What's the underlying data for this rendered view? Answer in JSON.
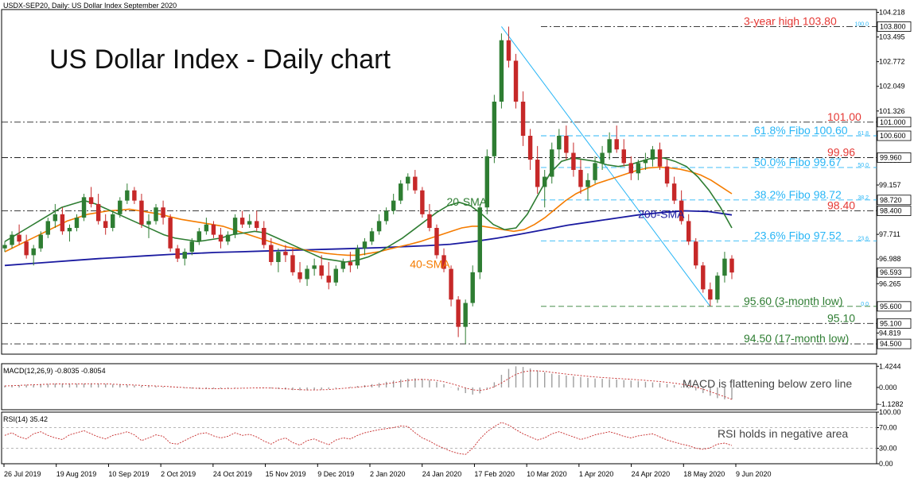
{
  "chart_data": {
    "type": "line",
    "header": "USDX-SEP20, Daily:  US Dollar Index September 2020",
    "title": "US Dollar Index - Daily chart",
    "x_labels": [
      "26 Jul 2019",
      "19 Aug 2019",
      "10 Sep 2019",
      "2 Oct 2019",
      "24 Oct 2019",
      "15 Nov 2019",
      "9 Dec 2019",
      "2 Jan 2020",
      "24 Jan 2020",
      "17 Feb 2020",
      "10 Mar 2020",
      "1 Apr 2020",
      "24 Apr 2020",
      "18 May 2020",
      "9 Jun 2020"
    ],
    "price": {
      "y_range": [
        94.2,
        104.3
      ],
      "y_ticks": [
        "104.218",
        "103.495",
        "102.772",
        "102.049",
        "101.326",
        "100.603",
        "99.880",
        "99.157",
        "98.434",
        "97.711",
        "96.988",
        "96.265",
        "95.542",
        "94.819"
      ],
      "price_tags": [
        {
          "value": 103.8,
          "label": "103.800"
        },
        {
          "value": 101.0,
          "label": "101.000"
        },
        {
          "value": 100.6,
          "label": "100.600"
        },
        {
          "value": 99.96,
          "label": "99.960"
        },
        {
          "value": 98.72,
          "label": "98.720"
        },
        {
          "value": 98.4,
          "label": "98.400"
        },
        {
          "value": 96.593,
          "label": "96.593"
        },
        {
          "value": 95.6,
          "label": "95.600"
        },
        {
          "value": 95.1,
          "label": "95.100"
        },
        {
          "value": 94.5,
          "label": "94.500"
        }
      ],
      "levels": [
        {
          "value": 103.8,
          "text": "3-year high 103.80",
          "color": "#e53935",
          "style": "dashdot",
          "fib": "100.0"
        },
        {
          "value": 101.0,
          "text": "101.00",
          "color": "#e53935",
          "style": "dashdot"
        },
        {
          "value": 100.6,
          "text": "61.8% Fibo 100.60",
          "color": "#29b6f6",
          "style": "dashed",
          "fib": "61.8"
        },
        {
          "value": 99.96,
          "text": "99.96",
          "color": "#e53935",
          "style": "dashdot"
        },
        {
          "value": 99.67,
          "text": "50.0% Fibo 99.67",
          "color": "#29b6f6",
          "style": "dashed",
          "fib": "50.0"
        },
        {
          "value": 98.72,
          "text": "38.2% Fibo 98.72",
          "color": "#29b6f6",
          "style": "dashed",
          "fib": "38.2"
        },
        {
          "value": 98.4,
          "text": "98.40",
          "color": "#e53935",
          "style": "dashdot"
        },
        {
          "value": 97.52,
          "text": "23.6% Fibo 97.52",
          "color": "#29b6f6",
          "style": "dashed",
          "fib": "23.6"
        },
        {
          "value": 95.6,
          "text": "95.60 (3-month low)",
          "color": "#2e7d32",
          "style": "dashed",
          "fib": "0.0"
        },
        {
          "value": 95.1,
          "text": "95.10",
          "color": "#2e7d32",
          "style": "dashdot"
        },
        {
          "value": 94.5,
          "text": "94.50 (17-month low)",
          "color": "#2e7d32",
          "style": "dashdot"
        }
      ],
      "candles": [
        [
          97.3,
          97.5,
          97.2,
          97.4
        ],
        [
          97.4,
          97.8,
          97.3,
          97.7
        ],
        [
          97.7,
          98.0,
          97.4,
          97.5
        ],
        [
          97.5,
          97.7,
          97.0,
          97.1
        ],
        [
          97.1,
          97.4,
          96.8,
          97.3
        ],
        [
          97.3,
          97.8,
          97.2,
          97.7
        ],
        [
          97.7,
          98.2,
          97.6,
          98.1
        ],
        [
          98.1,
          98.6,
          97.9,
          98.3
        ],
        [
          98.3,
          98.5,
          97.7,
          97.8
        ],
        [
          97.8,
          98.0,
          97.5,
          97.9
        ],
        [
          97.9,
          98.3,
          97.8,
          98.2
        ],
        [
          98.2,
          98.9,
          98.1,
          98.8
        ],
        [
          98.8,
          99.1,
          98.5,
          98.6
        ],
        [
          98.6,
          98.9,
          98.0,
          98.1
        ],
        [
          98.1,
          98.3,
          97.7,
          97.9
        ],
        [
          97.9,
          98.4,
          97.8,
          98.3
        ],
        [
          98.3,
          98.8,
          98.2,
          98.7
        ],
        [
          98.7,
          99.2,
          98.6,
          99.0
        ],
        [
          99.0,
          99.1,
          98.6,
          98.7
        ],
        [
          98.7,
          98.9,
          97.9,
          98.0
        ],
        [
          98.0,
          98.3,
          97.6,
          98.1
        ],
        [
          98.1,
          98.6,
          98.0,
          98.5
        ],
        [
          98.5,
          98.7,
          98.0,
          98.2
        ],
        [
          98.2,
          98.3,
          97.2,
          97.3
        ],
        [
          97.3,
          97.4,
          96.9,
          97.0
        ],
        [
          97.0,
          97.3,
          96.8,
          97.2
        ],
        [
          97.2,
          97.6,
          97.1,
          97.5
        ],
        [
          97.5,
          97.9,
          97.4,
          97.8
        ],
        [
          97.8,
          98.2,
          97.7,
          98.0
        ],
        [
          98.0,
          98.1,
          97.6,
          97.7
        ],
        [
          97.7,
          97.9,
          97.3,
          97.5
        ],
        [
          97.5,
          97.8,
          97.4,
          97.7
        ],
        [
          97.7,
          98.3,
          97.6,
          98.2
        ],
        [
          98.2,
          98.4,
          97.9,
          98.0
        ],
        [
          98.0,
          98.3,
          97.9,
          98.1
        ],
        [
          98.1,
          98.4,
          97.8,
          97.9
        ],
        [
          97.9,
          98.1,
          97.3,
          97.4
        ],
        [
          97.4,
          97.6,
          96.8,
          96.9
        ],
        [
          96.9,
          97.3,
          96.6,
          97.2
        ],
        [
          97.2,
          97.4,
          96.9,
          97.1
        ],
        [
          97.1,
          97.3,
          96.5,
          96.6
        ],
        [
          96.6,
          96.9,
          96.3,
          96.4
        ],
        [
          96.4,
          96.8,
          96.2,
          96.7
        ],
        [
          96.7,
          97.0,
          96.5,
          96.8
        ],
        [
          96.8,
          97.1,
          96.4,
          96.5
        ],
        [
          96.5,
          96.9,
          96.1,
          96.3
        ],
        [
          96.3,
          96.8,
          96.2,
          96.7
        ],
        [
          96.7,
          97.0,
          96.6,
          96.9
        ],
        [
          96.9,
          97.2,
          96.6,
          96.8
        ],
        [
          96.8,
          97.4,
          96.7,
          97.3
        ],
        [
          97.3,
          97.6,
          97.1,
          97.5
        ],
        [
          97.5,
          97.9,
          97.4,
          97.8
        ],
        [
          97.8,
          98.3,
          97.7,
          98.1
        ],
        [
          98.1,
          98.5,
          98.0,
          98.4
        ],
        [
          98.4,
          98.9,
          98.3,
          98.7
        ],
        [
          98.7,
          99.3,
          98.6,
          99.2
        ],
        [
          99.2,
          99.5,
          99.0,
          99.4
        ],
        [
          99.4,
          99.6,
          98.9,
          99.0
        ],
        [
          99.0,
          99.1,
          98.2,
          98.3
        ],
        [
          98.3,
          98.6,
          97.8,
          97.9
        ],
        [
          97.9,
          98.0,
          97.0,
          97.1
        ],
        [
          97.1,
          97.3,
          96.6,
          96.7
        ],
        [
          96.7,
          96.8,
          95.6,
          95.8
        ],
        [
          95.8,
          95.9,
          94.7,
          95.0
        ],
        [
          95.0,
          95.8,
          94.5,
          95.7
        ],
        [
          95.7,
          96.8,
          95.6,
          96.6
        ],
        [
          96.6,
          98.6,
          96.4,
          98.5
        ],
        [
          98.5,
          100.2,
          98.3,
          100.0
        ],
        [
          100.0,
          101.8,
          99.8,
          101.6
        ],
        [
          101.6,
          103.6,
          101.4,
          103.4
        ],
        [
          103.4,
          103.8,
          102.6,
          102.8
        ],
        [
          102.8,
          103.0,
          101.4,
          101.6
        ],
        [
          101.6,
          101.9,
          100.3,
          100.6
        ],
        [
          100.6,
          100.8,
          99.6,
          99.9
        ],
        [
          99.9,
          100.3,
          98.9,
          99.1
        ],
        [
          99.1,
          99.6,
          98.5,
          99.4
        ],
        [
          99.4,
          100.4,
          99.2,
          100.2
        ],
        [
          100.2,
          100.8,
          99.9,
          100.6
        ],
        [
          100.6,
          100.9,
          99.9,
          100.1
        ],
        [
          100.1,
          100.4,
          99.4,
          99.6
        ],
        [
          99.6,
          99.9,
          98.9,
          99.1
        ],
        [
          99.1,
          99.5,
          98.7,
          99.3
        ],
        [
          99.3,
          100.0,
          99.2,
          99.8
        ],
        [
          99.8,
          100.3,
          99.6,
          100.1
        ],
        [
          100.1,
          100.7,
          99.9,
          100.5
        ],
        [
          100.5,
          100.9,
          100.1,
          100.2
        ],
        [
          100.2,
          100.5,
          99.7,
          99.8
        ],
        [
          99.8,
          100.0,
          99.3,
          99.5
        ],
        [
          99.5,
          99.9,
          99.3,
          99.8
        ],
        [
          99.8,
          100.1,
          99.6,
          99.9
        ],
        [
          99.9,
          100.3,
          99.7,
          100.2
        ],
        [
          100.2,
          100.4,
          99.6,
          99.7
        ],
        [
          99.7,
          99.9,
          99.1,
          99.2
        ],
        [
          99.2,
          99.4,
          98.6,
          98.7
        ],
        [
          98.7,
          99.0,
          98.0,
          98.1
        ],
        [
          98.1,
          98.3,
          97.4,
          97.5
        ],
        [
          97.5,
          97.6,
          96.7,
          96.8
        ],
        [
          96.8,
          96.9,
          96.0,
          96.1
        ],
        [
          96.1,
          96.3,
          95.6,
          95.8
        ],
        [
          95.8,
          96.6,
          95.7,
          96.5
        ],
        [
          96.5,
          97.2,
          96.3,
          97.0
        ],
        [
          97.0,
          97.1,
          96.4,
          96.593
        ]
      ],
      "sma200": [
        96.8,
        96.85,
        96.9,
        96.95,
        97.0,
        97.04,
        97.08,
        97.12,
        97.15,
        97.18,
        97.2,
        97.22,
        97.24,
        97.26,
        97.28,
        97.3,
        97.32,
        97.35,
        97.38,
        97.42,
        97.5,
        97.6,
        97.72,
        97.85,
        97.98,
        98.08,
        98.18,
        98.28,
        98.35,
        98.4,
        98.38,
        98.28
      ],
      "sma200_label": "200-SMA",
      "sma40": [
        97.2,
        97.35,
        97.5,
        97.65,
        97.8,
        97.95,
        98.1,
        98.2,
        98.3,
        98.35,
        98.4,
        98.42,
        98.45,
        98.4,
        98.35,
        98.3,
        98.22,
        98.15,
        98.1,
        98.05,
        98.0,
        97.95,
        97.85,
        97.75,
        97.65,
        97.55,
        97.45,
        97.35,
        97.3,
        97.25,
        97.2,
        97.15,
        97.12,
        97.1,
        97.1,
        97.15,
        97.2,
        97.28,
        97.35,
        97.42,
        97.5,
        97.6,
        97.7,
        97.8,
        97.9,
        97.95,
        97.95,
        97.9,
        97.85,
        97.8,
        97.85,
        98.0,
        98.2,
        98.45,
        98.7,
        98.9,
        99.05,
        99.2,
        99.3,
        99.4,
        99.5,
        99.6,
        99.66,
        99.68,
        99.66,
        99.62,
        99.55,
        99.45,
        99.3,
        99.1,
        98.9
      ],
      "sma40_label": "40-SMA",
      "sma20": [
        97.5,
        97.7,
        97.9,
        98.1,
        98.3,
        98.5,
        98.6,
        98.7,
        98.6,
        98.45,
        98.3,
        98.15,
        98.0,
        97.85,
        97.7,
        97.6,
        97.55,
        97.5,
        97.55,
        97.6,
        97.7,
        97.75,
        97.8,
        97.75,
        97.6,
        97.45,
        97.3,
        97.15,
        97.0,
        96.95,
        96.9,
        96.95,
        97.05,
        97.2,
        97.4,
        97.6,
        97.85,
        98.1,
        98.35,
        98.55,
        98.65,
        98.55,
        98.3,
        98.0,
        97.85,
        97.9,
        98.3,
        98.9,
        99.5,
        99.85,
        99.95,
        99.9,
        99.85,
        99.75,
        99.7,
        99.75,
        99.85,
        99.95,
        99.95,
        99.85,
        99.7,
        99.4,
        99.0,
        98.5,
        97.9
      ],
      "sma20_label": "20-SMA",
      "trendline": {
        "from": [
          69,
          103.8
        ],
        "to": [
          98,
          95.6
        ]
      }
    },
    "macd": {
      "header": "MACD(12,26,9) -0.8035 -0.8054",
      "y_range": [
        -1.5,
        1.6
      ],
      "y_ticks": [
        "1.4244",
        "0.000",
        "-1.1282"
      ],
      "note": "MACD is flattening below zero line",
      "hist": [
        0.12,
        0.14,
        0.16,
        0.18,
        0.2,
        0.22,
        0.24,
        0.26,
        0.27,
        0.26,
        0.25,
        0.26,
        0.28,
        0.27,
        0.24,
        0.2,
        0.18,
        0.16,
        0.14,
        0.12,
        0.1,
        0.08,
        0.05,
        0.02,
        -0.02,
        -0.05,
        -0.08,
        -0.1,
        -0.1,
        -0.09,
        -0.08,
        -0.06,
        -0.04,
        -0.02,
        0.0,
        0.0,
        -0.02,
        -0.06,
        -0.1,
        -0.14,
        -0.18,
        -0.2,
        -0.2,
        -0.18,
        -0.15,
        -0.1,
        -0.05,
        0.0,
        0.05,
        0.1,
        0.16,
        0.22,
        0.3,
        0.38,
        0.46,
        0.54,
        0.6,
        0.62,
        0.58,
        0.5,
        0.38,
        0.22,
        0.02,
        -0.2,
        -0.38,
        -0.48,
        -0.4,
        -0.1,
        0.35,
        0.85,
        1.25,
        1.42,
        1.38,
        1.28,
        1.15,
        1.02,
        0.92,
        0.85,
        0.8,
        0.75,
        0.7,
        0.64,
        0.6,
        0.58,
        0.56,
        0.54,
        0.5,
        0.46,
        0.42,
        0.38,
        0.34,
        0.3,
        0.24,
        0.16,
        0.06,
        -0.06,
        -0.2,
        -0.38,
        -0.56,
        -0.72,
        -0.8,
        -0.8035
      ],
      "signal": [
        0.1,
        0.12,
        0.14,
        0.16,
        0.18,
        0.2,
        0.22,
        0.23,
        0.24,
        0.24,
        0.24,
        0.24,
        0.25,
        0.25,
        0.24,
        0.22,
        0.2,
        0.18,
        0.16,
        0.14,
        0.12,
        0.1,
        0.08,
        0.05,
        0.02,
        -0.01,
        -0.04,
        -0.06,
        -0.07,
        -0.08,
        -0.08,
        -0.07,
        -0.06,
        -0.05,
        -0.04,
        -0.03,
        -0.03,
        -0.04,
        -0.06,
        -0.09,
        -0.12,
        -0.15,
        -0.17,
        -0.17,
        -0.16,
        -0.14,
        -0.1,
        -0.06,
        -0.02,
        0.02,
        0.07,
        0.12,
        0.18,
        0.25,
        0.32,
        0.4,
        0.47,
        0.52,
        0.54,
        0.52,
        0.47,
        0.38,
        0.26,
        0.12,
        -0.03,
        -0.16,
        -0.2,
        -0.12,
        0.05,
        0.3,
        0.6,
        0.88,
        1.05,
        1.12,
        1.12,
        1.08,
        1.02,
        0.96,
        0.9,
        0.85,
        0.8,
        0.75,
        0.71,
        0.67,
        0.64,
        0.61,
        0.58,
        0.55,
        0.51,
        0.48,
        0.44,
        0.4,
        0.35,
        0.29,
        0.22,
        0.13,
        0.02,
        -0.12,
        -0.28,
        -0.45,
        -0.62,
        -0.8054
      ]
    },
    "rsi": {
      "header": "RSI(14) 35.42",
      "y_range": [
        0,
        100
      ],
      "y_ticks": [
        "100.00",
        "70.00",
        "30.00",
        "0.00"
      ],
      "levels": [
        70,
        30
      ],
      "note": "RSI holds in negative area",
      "values": [
        55,
        60,
        52,
        48,
        58,
        62,
        55,
        50,
        47,
        56,
        60,
        64,
        58,
        52,
        48,
        55,
        58,
        62,
        56,
        45,
        50,
        56,
        53,
        40,
        38,
        45,
        52,
        58,
        60,
        54,
        50,
        53,
        60,
        55,
        57,
        52,
        44,
        38,
        46,
        50,
        41,
        36,
        45,
        48,
        42,
        37,
        46,
        50,
        48,
        55,
        60,
        63,
        66,
        68,
        70,
        73,
        72,
        60,
        50,
        44,
        36,
        30,
        24,
        20,
        18,
        30,
        48,
        62,
        72,
        80,
        75,
        66,
        58,
        52,
        46,
        50,
        58,
        62,
        57,
        52,
        47,
        51,
        56,
        59,
        62,
        58,
        53,
        50,
        54,
        56,
        58,
        52,
        46,
        42,
        38,
        35,
        30,
        28,
        31,
        38,
        40,
        35.42
      ]
    }
  }
}
